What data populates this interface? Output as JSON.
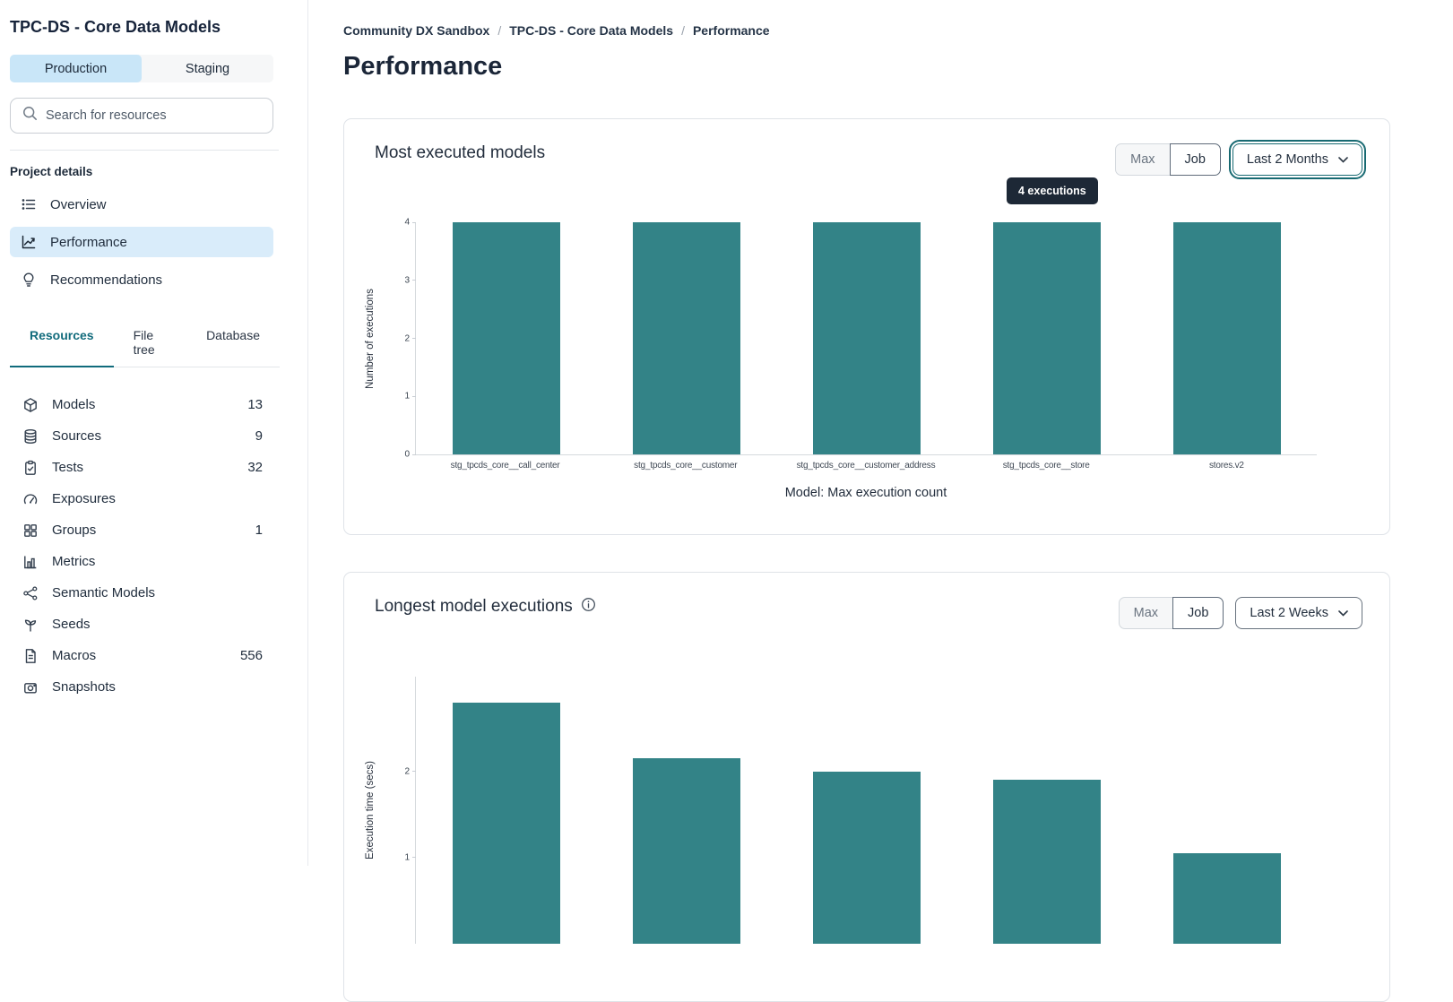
{
  "sidebar": {
    "title": "TPC-DS - Core Data Models",
    "env_tabs": [
      {
        "label": "Production",
        "active": true
      },
      {
        "label": "Staging",
        "active": false
      }
    ],
    "search_placeholder": "Search for resources",
    "project_details_label": "Project details",
    "nav": [
      {
        "label": "Overview",
        "icon": "list-icon",
        "active": false
      },
      {
        "label": "Performance",
        "icon": "line-chart-icon",
        "active": true
      },
      {
        "label": "Recommendations",
        "icon": "lightbulb-icon",
        "active": false
      }
    ],
    "resource_tabs": [
      {
        "label": "Resources",
        "active": true
      },
      {
        "label": "File tree",
        "active": false
      },
      {
        "label": "Database",
        "active": false
      }
    ],
    "resources": [
      {
        "label": "Models",
        "count": "13",
        "icon": "cube-icon"
      },
      {
        "label": "Sources",
        "count": "9",
        "icon": "database-icon"
      },
      {
        "label": "Tests",
        "count": "32",
        "icon": "clipboard-icon"
      },
      {
        "label": "Exposures",
        "count": "",
        "icon": "gauge-icon"
      },
      {
        "label": "Groups",
        "count": "1",
        "icon": "grid-icon"
      },
      {
        "label": "Metrics",
        "count": "",
        "icon": "bar-chart-icon"
      },
      {
        "label": "Semantic Models",
        "count": "",
        "icon": "network-icon"
      },
      {
        "label": "Seeds",
        "count": "",
        "icon": "seedling-icon"
      },
      {
        "label": "Macros",
        "count": "556",
        "icon": "document-icon"
      },
      {
        "label": "Snapshots",
        "count": "",
        "icon": "camera-icon"
      }
    ]
  },
  "breadcrumb": [
    "Community DX Sandbox",
    "TPC-DS - Core Data Models",
    "Performance"
  ],
  "page_title": "Performance",
  "cards": [
    {
      "title": "Most executed models",
      "toggle": {
        "options": [
          "Max",
          "Job"
        ],
        "selected": "Job"
      },
      "dropdown": "Last 2 Months",
      "dropdown_focused": true,
      "tooltip": "4 executions"
    },
    {
      "title": "Longest model executions",
      "has_info_icon": true,
      "toggle": {
        "options": [
          "Max",
          "Job"
        ],
        "selected": "Job"
      },
      "dropdown": "Last 2 Weeks",
      "dropdown_focused": false
    }
  ],
  "chart_data": [
    {
      "type": "bar",
      "title": "Most executed models",
      "categories": [
        "stg_tpcds_core__call_center",
        "stg_tpcds_core__customer",
        "stg_tpcds_core__customer_address",
        "stg_tpcds_core__store",
        "stores.v2"
      ],
      "values": [
        4,
        4,
        4,
        4,
        4
      ],
      "xlabel": "Model: Max execution count",
      "ylabel": "Number of executions",
      "ylim": [
        0,
        4
      ],
      "yticks": [
        0,
        1,
        2,
        3,
        4
      ],
      "bar_color": "#338387",
      "legend": "none",
      "grid": false,
      "tooltip": {
        "text": "4 executions",
        "bar_index": 3
      }
    },
    {
      "type": "bar",
      "title": "Longest model executions",
      "categories": [
        "",
        "",
        "",
        "",
        ""
      ],
      "values": [
        2.8,
        2.15,
        2.0,
        1.9,
        1.05
      ],
      "xlabel": "",
      "ylabel": "Execution time (secs)",
      "ylim": [
        0,
        3.1
      ],
      "yticks": [
        1,
        2
      ],
      "bar_color": "#338387",
      "legend": "none",
      "grid": false,
      "note": "chart bottom cut off by viewport"
    }
  ]
}
